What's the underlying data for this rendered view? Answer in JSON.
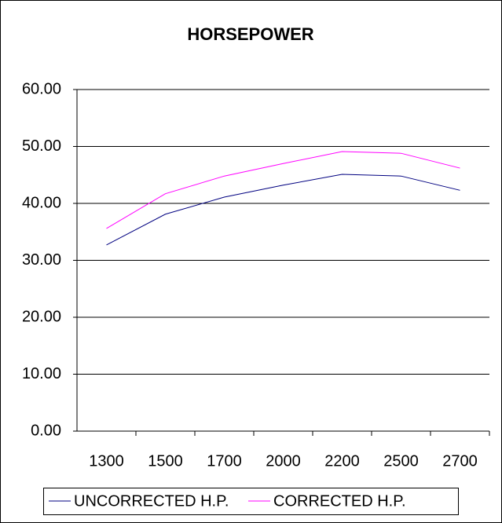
{
  "chart_data": {
    "type": "line",
    "title": "HORSEPOWER",
    "categories": [
      "1300",
      "1500",
      "1700",
      "2000",
      "2200",
      "2500",
      "2700"
    ],
    "series": [
      {
        "name": "UNCORRECTED H.P.",
        "color": "#000080",
        "values": [
          32.7,
          38.1,
          41.1,
          43.2,
          45.1,
          44.8,
          42.3
        ]
      },
      {
        "name": "CORRECTED H.P.",
        "color": "#ff00ff",
        "values": [
          35.6,
          41.7,
          44.8,
          47.0,
          49.1,
          48.8,
          46.2
        ]
      }
    ],
    "ylim": [
      0,
      60
    ],
    "yticks": [
      {
        "value": 0,
        "label": "0.00"
      },
      {
        "value": 10,
        "label": "10.00"
      },
      {
        "value": 20,
        "label": "20.00"
      },
      {
        "value": 30,
        "label": "30.00"
      },
      {
        "value": 40,
        "label": "40.00"
      },
      {
        "value": 50,
        "label": "50.00"
      },
      {
        "value": 60,
        "label": "60.00"
      }
    ],
    "grid": true,
    "legend": "bottom"
  }
}
